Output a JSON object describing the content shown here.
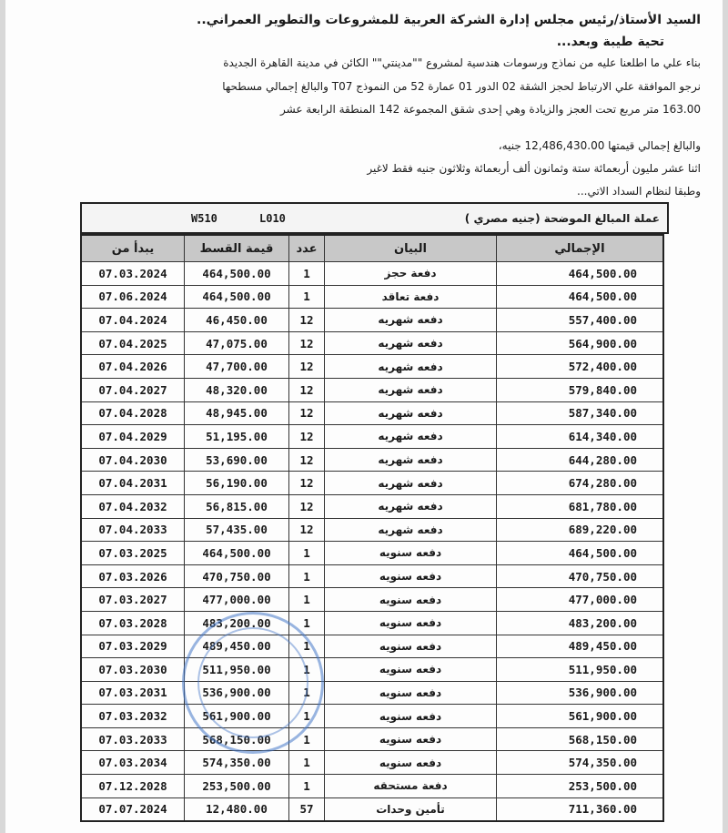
{
  "letter": {
    "salutation": "السيد الأستاذ/رئيس مجلس إدارة الشركة العربية للمشروعات والتطوير العمراني..",
    "greeting": "تحية طيبة وبعد...",
    "paragraph": [
      "بناء علي ما اطلعنا عليه من نماذج ورسومات هندسية لمشروع \"\"مدينتي\"\" الكائن في مدينة القاهرة الجديدة",
      "نرجو الموافقة علي الارتباط لحجز الشقة 02 الدور 01 عمارة 52 من النموذج T07 والبالغ إجمالي مسطحها",
      "163.00 متر مربع تحت العجز والزيادة وهي إحدى شقق المجموعة 142 المنطقة الرابعة عشر"
    ],
    "total_line": "والبالغ إجمالي قيمتها 12,486,430.00 جنيه،",
    "total_words": "اثنا عشر مليون أربعمائة ستة وثمانون ألف أربعمائة وثلاثون جنيه فقط لاغير",
    "payment_intro": "وطبقا لنظام السداد الاتي..."
  },
  "table": {
    "caption": "عملة المبالغ الموضحة (جنيه مصري )",
    "code1": "W510",
    "code2": "L010",
    "headers": {
      "start": "يبدأ من",
      "installment": "قيمة القسط",
      "count": "عدد",
      "description": "البيان",
      "total": "الإجمالي"
    },
    "rows": [
      {
        "start": "07.03.2024",
        "installment": "464,500.00",
        "count": "1",
        "description": "دفعة حجز",
        "total": "464,500.00"
      },
      {
        "start": "07.06.2024",
        "installment": "464,500.00",
        "count": "1",
        "description": "دفعة تعاقد",
        "total": "464,500.00"
      },
      {
        "start": "07.04.2024",
        "installment": "46,450.00",
        "count": "12",
        "description": "دفعه شهريه",
        "total": "557,400.00"
      },
      {
        "start": "07.04.2025",
        "installment": "47,075.00",
        "count": "12",
        "description": "دفعه شهريه",
        "total": "564,900.00"
      },
      {
        "start": "07.04.2026",
        "installment": "47,700.00",
        "count": "12",
        "description": "دفعه شهريه",
        "total": "572,400.00"
      },
      {
        "start": "07.04.2027",
        "installment": "48,320.00",
        "count": "12",
        "description": "دفعه شهريه",
        "total": "579,840.00"
      },
      {
        "start": "07.04.2028",
        "installment": "48,945.00",
        "count": "12",
        "description": "دفعه شهريه",
        "total": "587,340.00"
      },
      {
        "start": "07.04.2029",
        "installment": "51,195.00",
        "count": "12",
        "description": "دفعه شهريه",
        "total": "614,340.00"
      },
      {
        "start": "07.04.2030",
        "installment": "53,690.00",
        "count": "12",
        "description": "دفعه شهريه",
        "total": "644,280.00"
      },
      {
        "start": "07.04.2031",
        "installment": "56,190.00",
        "count": "12",
        "description": "دفعه شهريه",
        "total": "674,280.00"
      },
      {
        "start": "07.04.2032",
        "installment": "56,815.00",
        "count": "12",
        "description": "دفعه شهريه",
        "total": "681,780.00"
      },
      {
        "start": "07.04.2033",
        "installment": "57,435.00",
        "count": "12",
        "description": "دفعه شهريه",
        "total": "689,220.00"
      },
      {
        "start": "07.03.2025",
        "installment": "464,500.00",
        "count": "1",
        "description": "دفعه سنويه",
        "total": "464,500.00"
      },
      {
        "start": "07.03.2026",
        "installment": "470,750.00",
        "count": "1",
        "description": "دفعه سنويه",
        "total": "470,750.00"
      },
      {
        "start": "07.03.2027",
        "installment": "477,000.00",
        "count": "1",
        "description": "دفعه سنويه",
        "total": "477,000.00"
      },
      {
        "start": "07.03.2028",
        "installment": "483,200.00",
        "count": "1",
        "description": "دفعه سنويه",
        "total": "483,200.00"
      },
      {
        "start": "07.03.2029",
        "installment": "489,450.00",
        "count": "1",
        "description": "دفعه سنويه",
        "total": "489,450.00"
      },
      {
        "start": "07.03.2030",
        "installment": "511,950.00",
        "count": "1",
        "description": "دفعه سنويه",
        "total": "511,950.00"
      },
      {
        "start": "07.03.2031",
        "installment": "536,900.00",
        "count": "1",
        "description": "دفعه سنويه",
        "total": "536,900.00"
      },
      {
        "start": "07.03.2032",
        "installment": "561,900.00",
        "count": "1",
        "description": "دفعه سنويه",
        "total": "561,900.00"
      },
      {
        "start": "07.03.2033",
        "installment": "568,150.00",
        "count": "1",
        "description": "دفعه سنويه",
        "total": "568,150.00"
      },
      {
        "start": "07.03.2034",
        "installment": "574,350.00",
        "count": "1",
        "description": "دفعه سنويه",
        "total": "574,350.00"
      },
      {
        "start": "07.12.2028",
        "installment": "253,500.00",
        "count": "1",
        "description": "دفعة مستحقه",
        "total": "253,500.00"
      },
      {
        "start": "07.07.2024",
        "installment": "12,480.00",
        "count": "57",
        "description": "تأمين وحدات",
        "total": "711,360.00"
      }
    ]
  },
  "stamp_color": "#4678c8"
}
